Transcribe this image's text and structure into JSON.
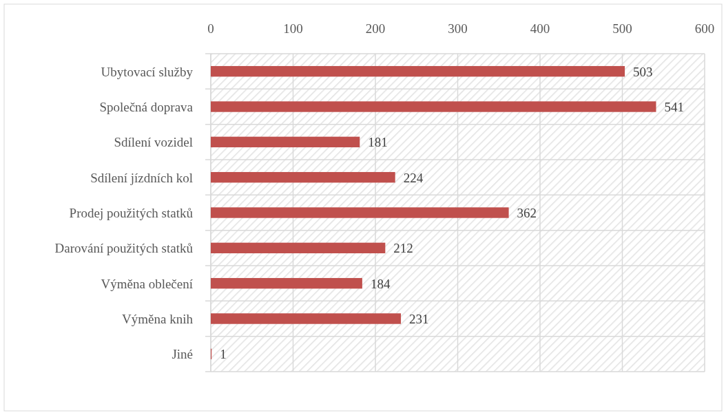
{
  "chart_data": {
    "type": "bar",
    "orientation": "horizontal",
    "categories": [
      "Ubytovací služby",
      "Společná doprava ",
      "Sdílení vozidel ",
      "Sdílení jízdních kol",
      "Prodej použitých statků",
      "Darování použitých statků ",
      "Výměna oblečení ",
      "Výměna knih ",
      "Jiné"
    ],
    "values": [
      503,
      541,
      181,
      224,
      362,
      212,
      184,
      231,
      1
    ],
    "color": "#c0504d",
    "xlim": [
      0,
      600
    ],
    "xticks": [
      0,
      100,
      200,
      300,
      400,
      500,
      600
    ],
    "grid": true,
    "data_labels": true
  }
}
